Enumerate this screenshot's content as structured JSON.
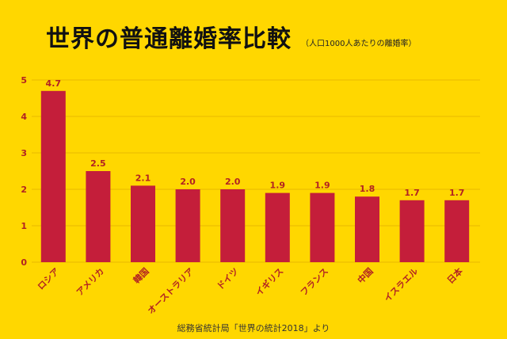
{
  "title": "世界の普通離婚率比較",
  "subtitle": "（人口1000人あたりの離婚率）",
  "source": "総務省統計局「世界の統計2018」より",
  "colors": {
    "background": "#FFD700",
    "bar": "#C41E3A",
    "label": "#B22222",
    "grid": "#E8B800"
  },
  "chart_data": {
    "type": "bar",
    "categories": [
      "ロシア",
      "アメリカ",
      "韓国",
      "オーストラリア",
      "ドイツ",
      "イギリス",
      "フランス",
      "中国",
      "イスラエル",
      "日本"
    ],
    "values": [
      4.7,
      2.5,
      2.1,
      2.0,
      2.0,
      1.9,
      1.9,
      1.8,
      1.7,
      1.7
    ],
    "value_labels": [
      "4.7",
      "2.5",
      "2.1",
      "2.0",
      "2.0",
      "1.9",
      "1.9",
      "1.8",
      "1.7",
      "1.7"
    ],
    "yticks": [
      "0",
      "1",
      "2",
      "3",
      "4",
      "5"
    ],
    "ylim": [
      0,
      5
    ],
    "grid": true
  }
}
